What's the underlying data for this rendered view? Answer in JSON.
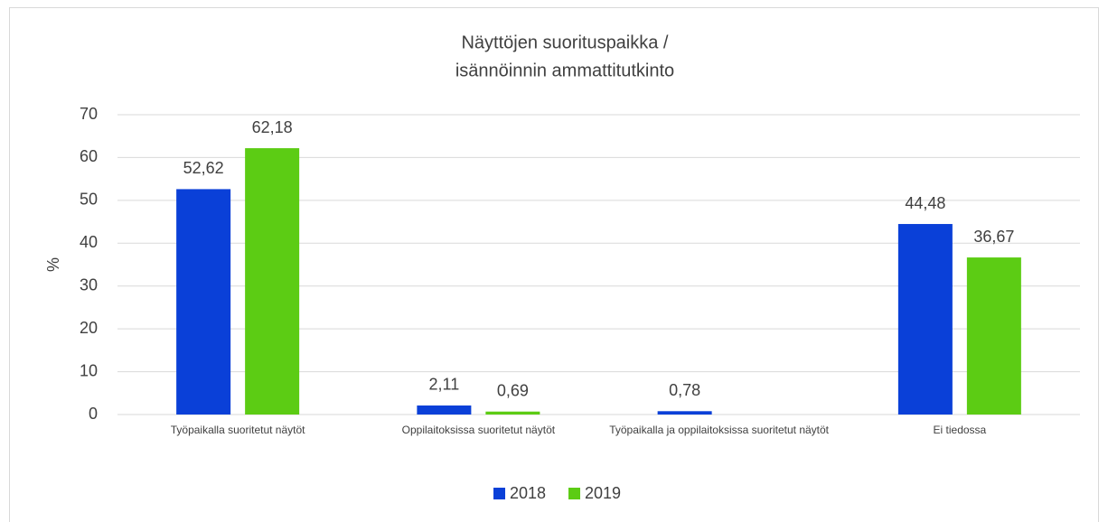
{
  "chart_data": {
    "type": "bar",
    "title": [
      "Näyttöjen suorituspaikka /",
      "isännöinnin ammattitutkinto"
    ],
    "y_label": "%",
    "categories": [
      "Työpaikalla suoritetut näytöt",
      "Oppilaitoksissa suoritetut näytöt",
      "Työpaikalla ja oppilaitoksissa suoritetut näytöt",
      "Ei tiedossa"
    ],
    "series": [
      {
        "name": "2018",
        "color": "#0a40d8",
        "values": [
          52.62,
          2.11,
          0.78,
          44.48
        ],
        "value_labels": [
          "52,62",
          "2,11",
          "0,78",
          "44,48"
        ]
      },
      {
        "name": "2019",
        "color": "#5ccc14",
        "values": [
          62.18,
          0.69,
          null,
          36.67
        ],
        "value_labels": [
          "62,18",
          "0,69",
          null,
          "36,67"
        ]
      }
    ],
    "ylim": [
      0,
      70
    ],
    "yticks": [
      0,
      10,
      20,
      30,
      40,
      50,
      60,
      70
    ],
    "grid": true,
    "legend": "bottom"
  }
}
